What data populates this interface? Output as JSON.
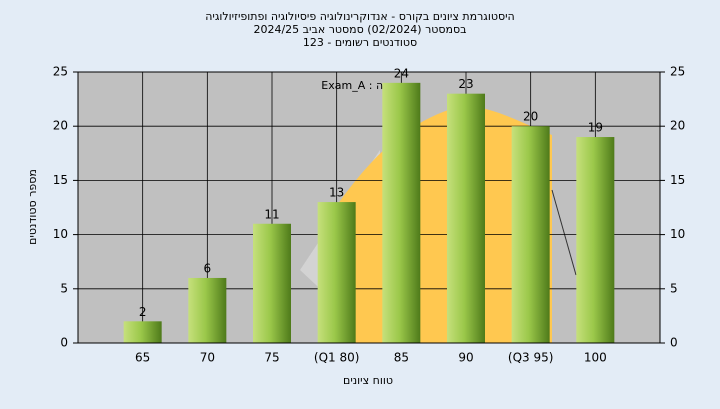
{
  "chart_data": {
    "type": "bar",
    "title": [
      "היסטוגרמת ציונים בקורס - אנדוקרינולוגיה פיסיולוגיה ופתופיזיולוגיה",
      "בסמסטר  (02/2024)  סמסטר אביב 2024/25",
      "סטודנטים רשומים - 123"
    ],
    "annotation": "Exam_A : במשימה",
    "x_label": "טווח ציונים",
    "y_label": "מספר סטודנטים",
    "categories": [
      null,
      "65",
      "70",
      "75",
      "(Q1 80)",
      "85",
      "90",
      "(Q3 95)",
      "100"
    ],
    "values": [
      null,
      2,
      6,
      11,
      13,
      24,
      23,
      20,
      19
    ],
    "color": "#8fc043",
    "ylim": [
      0,
      25
    ],
    "yticks": [
      0,
      5,
      10,
      15,
      20,
      25
    ],
    "y2lim": [
      0,
      25
    ],
    "y2ticks": [
      0,
      5,
      10,
      15,
      20,
      25
    ],
    "grid": true
  }
}
